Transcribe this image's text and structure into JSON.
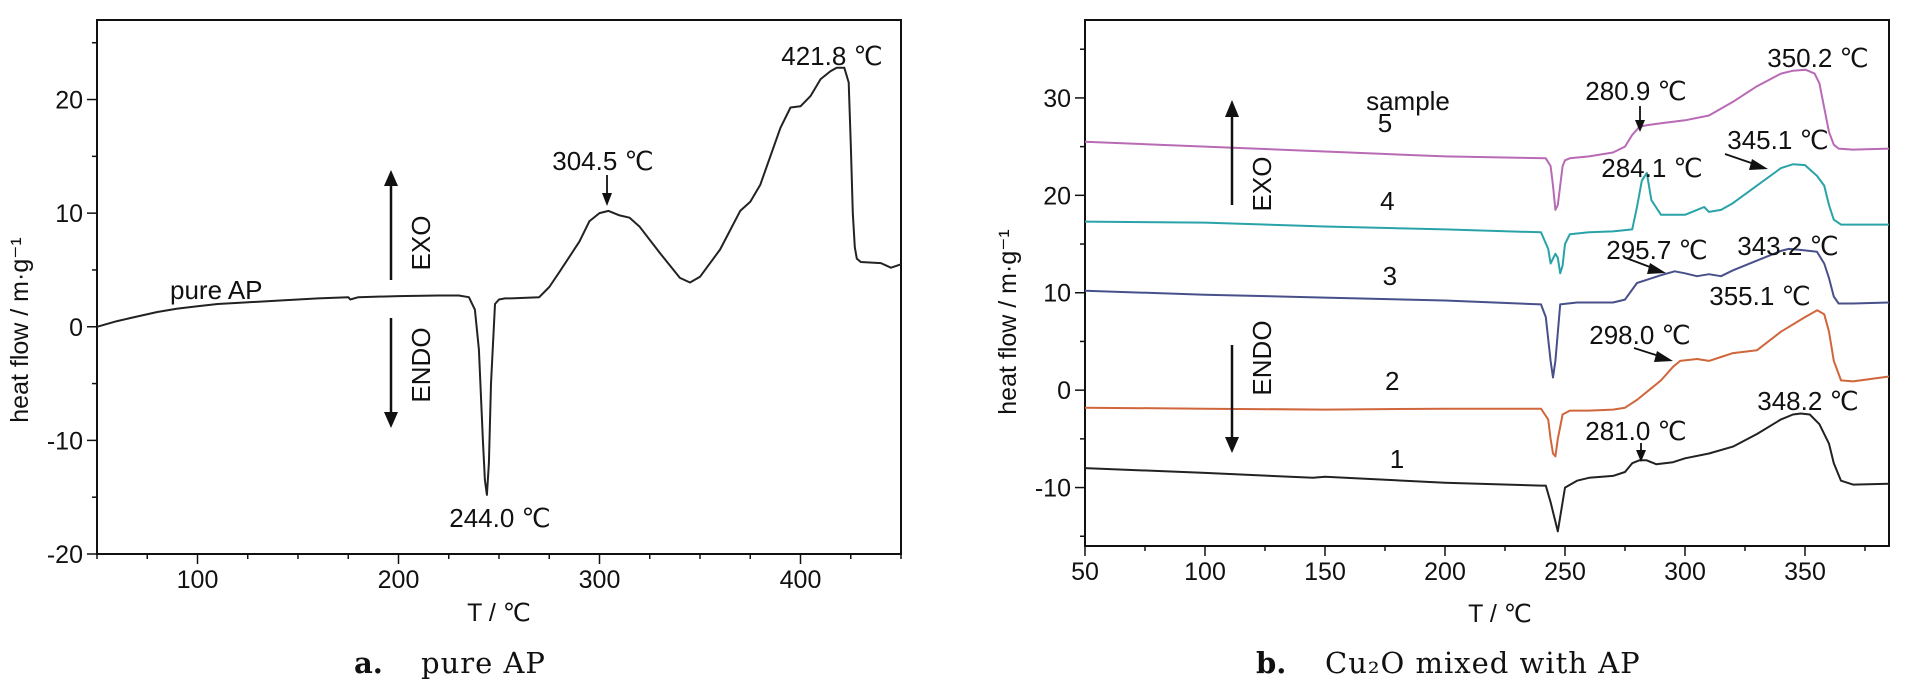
{
  "chart_data": [
    {
      "type": "line",
      "xlabel": "T / ℃",
      "ylabel": "heat flow / m·g⁻¹",
      "xlim": [
        50,
        450
      ],
      "ylim": [
        -20,
        27
      ],
      "xticks": [
        100,
        200,
        300,
        400
      ],
      "yticks": [
        -20,
        -10,
        0,
        10,
        20
      ],
      "caption_letter": "a.",
      "caption": "pure AP",
      "series": [
        {
          "name": "pure AP",
          "color": "#222222",
          "x": [
            50,
            60,
            70,
            80,
            90,
            100,
            110,
            120,
            140,
            160,
            175,
            176,
            180,
            200,
            220,
            230,
            235,
            238,
            240,
            242,
            243,
            244,
            245,
            246,
            248,
            250,
            253,
            256,
            270,
            275,
            280,
            290,
            295,
            300,
            304.5,
            310,
            315,
            320,
            330,
            340,
            345,
            350,
            360,
            370,
            375,
            380,
            390,
            395,
            400,
            405,
            410,
            415,
            418,
            421.8,
            424,
            425,
            426,
            427,
            428,
            430,
            440,
            445,
            450
          ],
          "y": [
            0,
            0.5,
            0.9,
            1.3,
            1.6,
            1.8,
            2.0,
            2.1,
            2.3,
            2.5,
            2.6,
            2.4,
            2.6,
            2.7,
            2.75,
            2.75,
            2.6,
            1.5,
            -2,
            -10,
            -13.5,
            -14.8,
            -12,
            -5,
            2.0,
            2.4,
            2.5,
            2.5,
            2.6,
            3.5,
            4.8,
            7.5,
            9.3,
            10.0,
            10.2,
            9.8,
            9.6,
            8.8,
            6.5,
            4.3,
            3.9,
            4.4,
            6.8,
            10.2,
            11.0,
            12.5,
            17.5,
            19.3,
            19.4,
            20.3,
            21.8,
            22.5,
            22.8,
            22.8,
            21.5,
            16,
            10,
            7,
            6.0,
            5.7,
            5.6,
            5.2,
            5.5
          ]
        }
      ],
      "annotations": [
        {
          "text": "421.8 ℃",
          "x": 421.8,
          "y": 22.8
        },
        {
          "text": "304.5 ℃",
          "x": 304.5,
          "y": 10.2
        },
        {
          "text": "244.0 ℃",
          "x": 244.0,
          "y": -14.8
        },
        {
          "text": "pure AP"
        },
        {
          "text": "EXO"
        },
        {
          "text": "ENDO"
        }
      ]
    },
    {
      "type": "line",
      "xlabel": "T / ℃",
      "ylabel": "heat flow / m·g⁻¹",
      "xlim": [
        50,
        385
      ],
      "ylim": [
        -16,
        38
      ],
      "xticks": [
        50,
        100,
        150,
        200,
        250,
        300,
        350
      ],
      "yticks": [
        -10,
        0,
        10,
        20,
        30
      ],
      "caption_letter": "b.",
      "caption": "Cu₂O mixed with AP",
      "legend_title": "sample",
      "series": [
        {
          "name": "1",
          "color": "#222222",
          "x": [
            50,
            100,
            145,
            150,
            200,
            240,
            242,
            244,
            246,
            247,
            248,
            250,
            255,
            260,
            270,
            275,
            278,
            281,
            284,
            288,
            295,
            300,
            310,
            320,
            330,
            340,
            345,
            348.2,
            352,
            356,
            360,
            362,
            365,
            370,
            385
          ],
          "y": [
            -8,
            -8.5,
            -9.0,
            -8.9,
            -9.5,
            -9.8,
            -9.8,
            -11.5,
            -13.5,
            -14.5,
            -13,
            -10,
            -9.3,
            -9.0,
            -8.8,
            -8.4,
            -7.5,
            -7.2,
            -7.2,
            -7.6,
            -7.4,
            -7.0,
            -6.5,
            -5.8,
            -4.5,
            -3.0,
            -2.5,
            -2.4,
            -2.5,
            -3.5,
            -5.5,
            -7.5,
            -9.3,
            -9.7,
            -9.6
          ]
        },
        {
          "name": "2",
          "color": "#d0663c",
          "x": [
            50,
            100,
            150,
            200,
            240,
            243,
            244,
            245,
            246,
            247,
            249,
            252,
            260,
            270,
            275,
            280,
            290,
            295,
            298,
            305,
            310,
            315,
            320,
            330,
            340,
            350,
            355.1,
            358,
            360,
            362,
            365,
            370,
            385
          ],
          "y": [
            -1.8,
            -1.9,
            -2.0,
            -1.9,
            -1.9,
            -3.0,
            -5.0,
            -6.5,
            -6.8,
            -5.0,
            -2.5,
            -2.1,
            -2.1,
            -2.0,
            -1.8,
            -1.0,
            1.0,
            2.4,
            3.0,
            3.2,
            3.0,
            3.4,
            3.8,
            4.1,
            6.0,
            7.5,
            8.2,
            7.8,
            6.0,
            3.0,
            1.0,
            0.9,
            1.4
          ]
        },
        {
          "name": "3",
          "color": "#48508a",
          "x": [
            50,
            100,
            150,
            200,
            240,
            242,
            244,
            245,
            246,
            248,
            255,
            270,
            275,
            280,
            290,
            295.7,
            300,
            305,
            310,
            315,
            320,
            330,
            340,
            343.2,
            348,
            355,
            358,
            360,
            362,
            364,
            370,
            385
          ],
          "y": [
            10.2,
            9.8,
            9.5,
            9.2,
            8.8,
            7.5,
            3.0,
            1.3,
            3.0,
            8.8,
            9.0,
            9.0,
            9.3,
            11.0,
            11.8,
            12.2,
            12.0,
            11.7,
            11.9,
            11.7,
            12.3,
            13.3,
            14.3,
            14.5,
            14.4,
            14.2,
            13.0,
            11.5,
            9.6,
            8.9,
            8.9,
            9.0
          ]
        },
        {
          "name": "4",
          "color": "#2aa3a8",
          "x": [
            50,
            100,
            150,
            200,
            240,
            243,
            244,
            246,
            247,
            248,
            249,
            250,
            252,
            260,
            270,
            278,
            280,
            282,
            284.1,
            286,
            290,
            300,
            305,
            308,
            310,
            315,
            320,
            330,
            340,
            345.1,
            350,
            355,
            358,
            360,
            362,
            365,
            385
          ],
          "y": [
            17.3,
            17.2,
            16.8,
            16.5,
            16.2,
            14.5,
            13.0,
            14.0,
            13.6,
            12.0,
            12.8,
            15.0,
            16.0,
            16.2,
            16.3,
            16.5,
            18.8,
            21.5,
            22.3,
            19.5,
            18.0,
            18.0,
            18.5,
            18.8,
            18.3,
            18.5,
            19.2,
            21.0,
            22.8,
            23.2,
            23.1,
            22.0,
            21.0,
            19.0,
            17.5,
            17.0,
            17.0
          ]
        },
        {
          "name": "5",
          "color": "#b86ab5",
          "x": [
            50,
            100,
            150,
            200,
            242,
            244,
            245,
            246,
            247,
            248,
            249,
            250,
            252,
            260,
            270,
            275,
            278,
            280.9,
            284,
            290,
            300,
            310,
            320,
            330,
            340,
            345,
            350.2,
            354,
            356,
            358,
            360,
            362,
            364,
            370,
            385
          ],
          "y": [
            25.5,
            25.0,
            24.5,
            24.0,
            23.8,
            23.0,
            21.0,
            18.5,
            19.0,
            21.0,
            23.0,
            23.6,
            23.8,
            24.0,
            24.4,
            25.0,
            26.2,
            27.0,
            27.2,
            27.4,
            27.7,
            28.2,
            29.6,
            31.2,
            32.5,
            32.8,
            32.9,
            32.5,
            31.5,
            29.0,
            26.5,
            25.2,
            24.8,
            24.7,
            24.8
          ]
        }
      ],
      "annotations": [
        {
          "text": "350.2 ℃",
          "x": 350.2,
          "y": 32.9
        },
        {
          "text": "280.9 ℃",
          "x": 280.9,
          "y": 27.0
        },
        {
          "text": "345.1 ℃",
          "x": 345.1,
          "y": 23.2
        },
        {
          "text": "284.1 ℃",
          "x": 284.1,
          "y": 22.3
        },
        {
          "text": "295.7 ℃",
          "x": 295.7,
          "y": 12.2
        },
        {
          "text": "343.2 ℃",
          "x": 343.2,
          "y": 14.5
        },
        {
          "text": "355.1 ℃",
          "x": 355.1,
          "y": 8.2
        },
        {
          "text": "298.0 ℃",
          "x": 298.0,
          "y": 3.0
        },
        {
          "text": "281.0 ℃",
          "x": 281.0,
          "y": -7.2
        },
        {
          "text": "348.2 ℃",
          "x": 348.2,
          "y": -2.4
        },
        {
          "text": "EXO"
        },
        {
          "text": "ENDO"
        }
      ]
    }
  ]
}
